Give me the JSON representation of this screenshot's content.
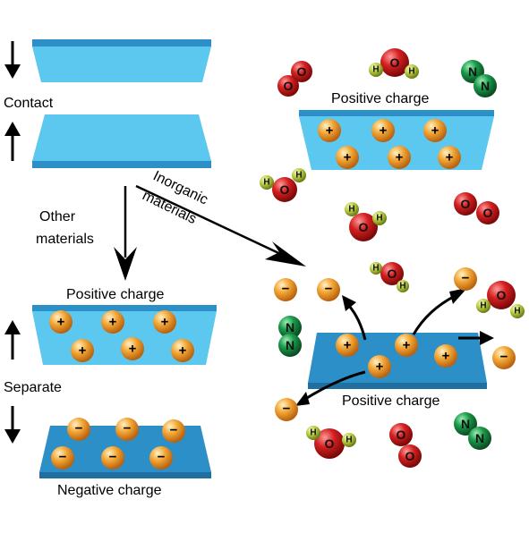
{
  "labels": {
    "contact": "Contact",
    "other_materials_line1": "Other",
    "other_materials_line2": "materials",
    "inorganic_line1": "Inorganic",
    "inorganic_line2": "materials",
    "separate": "Separate",
    "positive_charge_left": "Positive charge",
    "negative_charge": "Negative charge",
    "positive_charge_top_right": "Positive charge",
    "positive_charge_bottom_right": "Positive charge"
  },
  "symbols": {
    "plus": "+",
    "minus": "−"
  },
  "molecules": {
    "oxygen": {
      "atom": "O"
    },
    "water": {
      "oxygen": "O",
      "hydrogen": "H"
    },
    "nitrogen": {
      "atom": "N"
    }
  },
  "colors": {
    "plate_light": "#5cc8f0",
    "plate_dark": "#2d8fc7",
    "charge_orange": "#f0a030",
    "oxygen_red": "#d42020",
    "hydrogen_green": "#b8cc40",
    "nitrogen_green": "#1a9a4a"
  }
}
